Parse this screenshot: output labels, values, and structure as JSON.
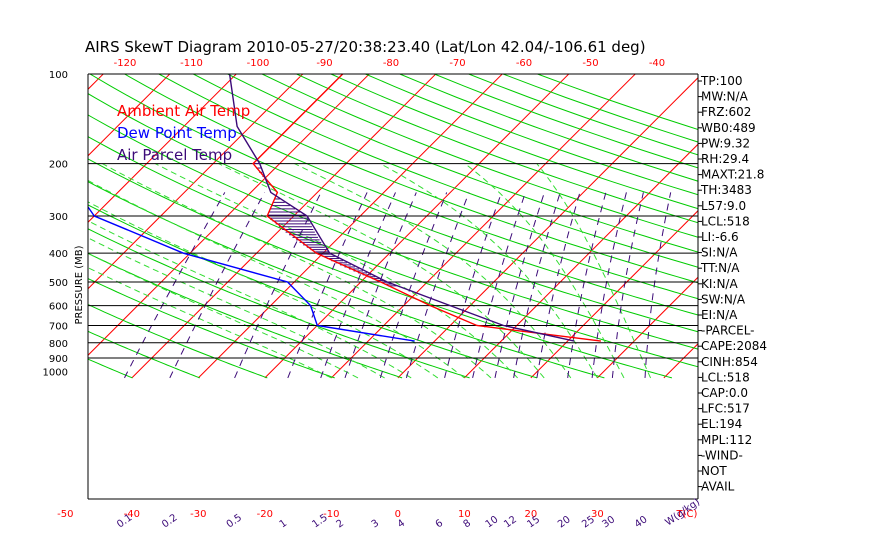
{
  "chart_data": {
    "type": "skewt",
    "title": "AIRS SkewT Diagram 2010-05-27/20:38:23.40 (Lat/Lon 42.04/-106.61 deg)",
    "ylabel": "PRESSURE (MB)",
    "xlabel": "T(C)",
    "mixing_ratio_unit": "W(g/kg)",
    "pressure_ticks": [
      100,
      200,
      300,
      400,
      500,
      600,
      700,
      800,
      900,
      1000
    ],
    "pressure_lines": [
      200,
      300,
      400,
      500,
      600,
      700,
      800,
      900
    ],
    "bottom_temp_ticks": [
      -50,
      -40,
      -30,
      -20,
      -10,
      0,
      10,
      20,
      30
    ],
    "top_temp_ticks": [
      -120,
      -110,
      -100,
      -90,
      -80,
      -70,
      -60,
      -50,
      -40
    ],
    "mixing_ratio_ticks": [
      "0.1",
      "0.2",
      "0.5",
      "1",
      "1.5",
      "2",
      "3",
      "4",
      "6",
      "8",
      "10",
      "12",
      "15",
      "20",
      "25",
      "30",
      "40"
    ],
    "legend": [
      {
        "label": "Ambient Air Temp",
        "color": "#ff0000"
      },
      {
        "label": "Dew Point Temp",
        "color": "#0000ff"
      },
      {
        "label": "Air Parcel Temp",
        "color": "#3c0a78"
      }
    ],
    "series": [
      {
        "name": "Ambient Air Temp",
        "color": "#ff0000",
        "points": [
          [
            100,
            -54
          ],
          [
            150,
            -54
          ],
          [
            200,
            -54
          ],
          [
            250,
            -46
          ],
          [
            300,
            -44
          ],
          [
            400,
            -31
          ],
          [
            500,
            -17
          ],
          [
            600,
            -6
          ],
          [
            700,
            4
          ],
          [
            790,
            25
          ]
        ]
      },
      {
        "name": "Dew Point Temp",
        "color": "#0000ff",
        "points": [
          [
            100,
            -93
          ],
          [
            150,
            -90
          ],
          [
            195,
            -87
          ],
          [
            250,
            -76
          ],
          [
            300,
            -70
          ],
          [
            400,
            -51
          ],
          [
            500,
            -31
          ],
          [
            600,
            -24
          ],
          [
            700,
            -20
          ],
          [
            790,
            -3
          ]
        ]
      },
      {
        "name": "Air Parcel Temp",
        "color": "#3c0a78",
        "points": [
          [
            100,
            -71
          ],
          [
            150,
            -62
          ],
          [
            200,
            -53
          ],
          [
            250,
            -47
          ],
          [
            300,
            -38
          ],
          [
            400,
            -29
          ],
          [
            500,
            -16
          ],
          [
            600,
            -3
          ],
          [
            700,
            8
          ],
          [
            790,
            21
          ]
        ]
      }
    ],
    "grid": true
  },
  "side_panel": [
    "TP:100",
    "MW:N/A",
    "FRZ:602",
    "WB0:489",
    "PW:9.32",
    "RH:29.4",
    "MAXT:21.8",
    "TH:3483",
    "L57:9.0",
    "LCL:518",
    "LI:-6.6",
    "SI:N/A",
    "TT:N/A",
    "KI:N/A",
    "SW:N/A",
    "EI:N/A",
    "-PARCEL-",
    "CAPE:2084",
    "CINH:854",
    "LCL:518",
    "CAP:0.0",
    "LFC:517",
    "EL:194",
    "MPL:112",
    "-WIND-",
    " NOT",
    "AVAIL"
  ],
  "colors": {
    "dry_adiabat": "#00cc00",
    "moist_adiabat": "#33dd33",
    "isotherm": "#ff0000",
    "mixing_ratio": "#3c0a78",
    "axis_text": "#ff0000",
    "frame": "#000000"
  }
}
